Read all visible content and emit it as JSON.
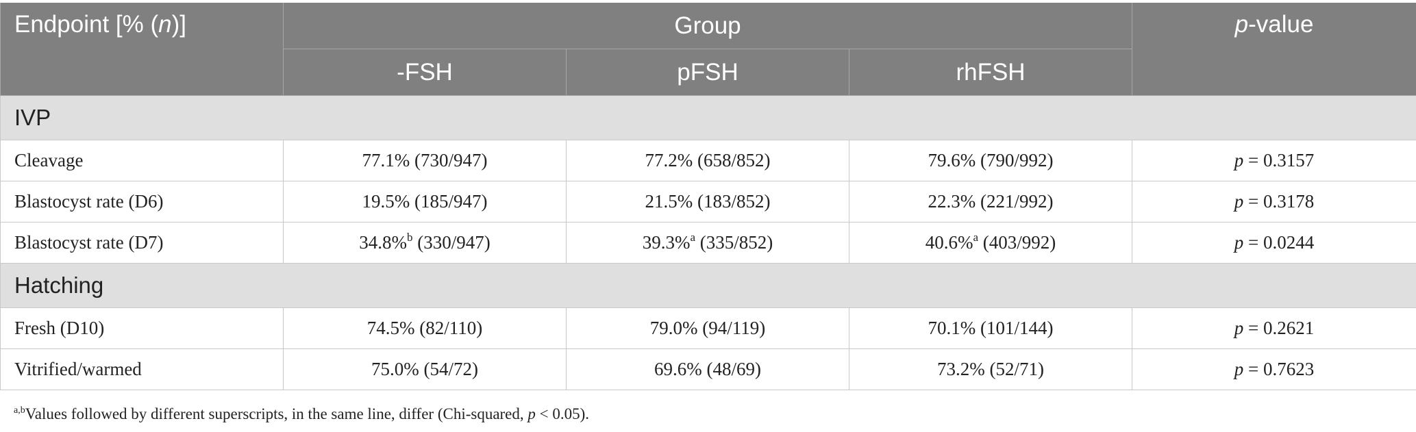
{
  "header": {
    "endpoint_prefix": "Endpoint [% (",
    "endpoint_n": "n",
    "endpoint_suffix": ")]",
    "group": "Group",
    "pvalue_p": "p",
    "pvalue_suffix": "-value",
    "columns": [
      "-FSH",
      "pFSH",
      "rhFSH"
    ]
  },
  "sections": [
    {
      "title": "IVP",
      "rows": [
        {
          "label": "Cleavage",
          "cells": [
            {
              "v": "77.1%",
              "sup": "",
              "n": " (730/947)"
            },
            {
              "v": "77.2%",
              "sup": "",
              "n": " (658/852)"
            },
            {
              "v": "79.6%",
              "sup": "",
              "n": " (790/992)"
            }
          ],
          "p_value": " = 0.3157"
        },
        {
          "label": "Blastocyst rate (D6)",
          "cells": [
            {
              "v": "19.5%",
              "sup": "",
              "n": " (185/947)"
            },
            {
              "v": "21.5%",
              "sup": "",
              "n": " (183/852)"
            },
            {
              "v": "22.3%",
              "sup": "",
              "n": " (221/992)"
            }
          ],
          "p_value": " = 0.3178"
        },
        {
          "label": "Blastocyst rate (D7)",
          "cells": [
            {
              "v": "34.8%",
              "sup": "b",
              "n": " (330/947)"
            },
            {
              "v": "39.3%",
              "sup": "a",
              "n": " (335/852)"
            },
            {
              "v": "40.6%",
              "sup": "a",
              "n": " (403/992)"
            }
          ],
          "p_value": " = 0.0244"
        }
      ]
    },
    {
      "title": "Hatching",
      "rows": [
        {
          "label": "Fresh (D10)",
          "cells": [
            {
              "v": "74.5%",
              "sup": "",
              "n": " (82/110)"
            },
            {
              "v": "79.0%",
              "sup": "",
              "n": " (94/119)"
            },
            {
              "v": "70.1%",
              "sup": "",
              "n": " (101/144)"
            }
          ],
          "p_value": " = 0.2621"
        },
        {
          "label": "Vitrified/warmed",
          "cells": [
            {
              "v": "75.0%",
              "sup": "",
              "n": " (54/72)"
            },
            {
              "v": "69.6%",
              "sup": "",
              "n": " (48/69)"
            },
            {
              "v": "73.2%",
              "sup": "",
              "n": " (52/71)"
            }
          ],
          "p_value": " = 0.7623"
        }
      ]
    }
  ],
  "p_symbol": "p",
  "footnote": {
    "sup": "a,b",
    "text_before": "Values followed by different superscripts, in the same line, differ (Chi-squared, ",
    "p": "p",
    "text_after": " < 0.05)."
  }
}
